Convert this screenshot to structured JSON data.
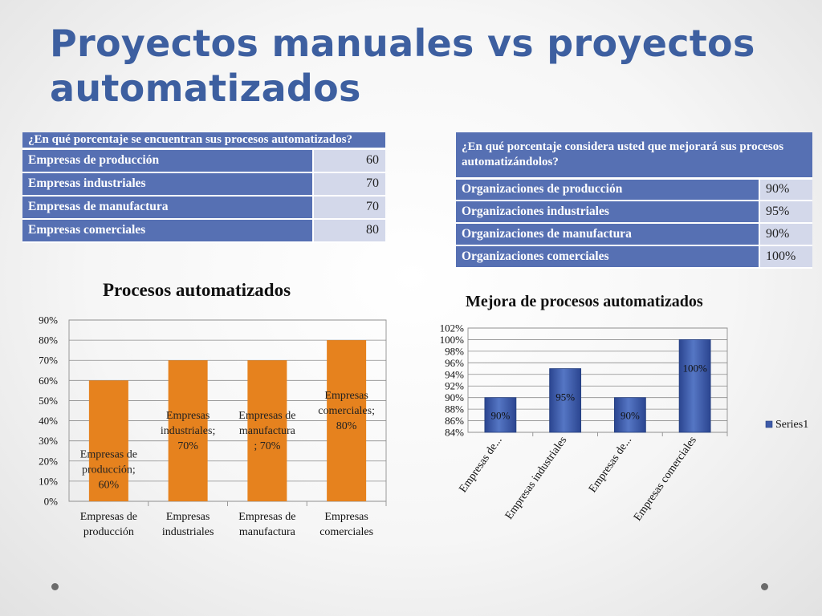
{
  "slide": {
    "title": "Proyectos manuales vs proyectos automatizados"
  },
  "table_left": {
    "header": "¿En qué porcentaje se encuentran sus procesos automatizados?",
    "rows": [
      {
        "label": "Empresas de producción",
        "value": "60"
      },
      {
        "label": "Empresas industriales",
        "value": "70"
      },
      {
        "label": "Empresas de manufactura",
        "value": "70"
      },
      {
        "label": "Empresas comerciales",
        "value": "80"
      }
    ]
  },
  "table_right": {
    "header": "¿En qué  porcentaje considera usted que mejorará sus procesos automatizándolos?",
    "rows": [
      {
        "label": "Organizaciones de producción",
        "value": "90%"
      },
      {
        "label": "Organizaciones industriales",
        "value": "95%"
      },
      {
        "label": "Organizaciones de manufactura",
        "value": "90%"
      },
      {
        "label": "Organizaciones comerciales",
        "value": "100%"
      }
    ]
  },
  "colors": {
    "table_header": "#5670b3",
    "table_value_bg": "#d3d8ea",
    "bar_orange": "#e6821e",
    "bar_blue": "#3d5aa8",
    "title": "#3d5fa0"
  },
  "chart_data": [
    {
      "type": "bar",
      "title": "Procesos automatizados",
      "categories": [
        "Empresas de producción",
        "Empresas industriales",
        "Empresas de manufactura",
        "Empresas comerciales"
      ],
      "category_lines": [
        [
          "Empresas de",
          "producción"
        ],
        [
          "Empresas",
          "industriales"
        ],
        [
          "Empresas de",
          "manufactura"
        ],
        [
          "Empresas",
          "comerciales"
        ]
      ],
      "values": [
        60,
        70,
        70,
        80
      ],
      "data_labels": [
        [
          "Empresas de",
          "producción;",
          "60%"
        ],
        [
          "Empresas",
          "industriales;",
          "70%"
        ],
        [
          "Empresas de",
          "manufactura",
          "; 70%"
        ],
        [
          "Empresas",
          "comerciales;",
          "80%"
        ]
      ],
      "yticks": [
        "0%",
        "10%",
        "20%",
        "30%",
        "40%",
        "50%",
        "60%",
        "70%",
        "80%",
        "90%"
      ],
      "ylim": [
        0,
        90
      ],
      "color": "#e6821e",
      "grid": true,
      "legend": "none"
    },
    {
      "type": "bar",
      "title": "Mejora de procesos automatizados",
      "categories": [
        "Empresas de...",
        "Empresas industriales",
        "Empresas de...",
        "Empresas comerciales"
      ],
      "values": [
        90,
        95,
        90,
        100
      ],
      "data_labels": [
        "90%",
        "95%",
        "90%",
        "100%"
      ],
      "yticks": [
        "84%",
        "86%",
        "88%",
        "90%",
        "92%",
        "94%",
        "96%",
        "98%",
        "100%",
        "102%"
      ],
      "ylim": [
        84,
        102
      ],
      "series": [
        {
          "name": "Series1",
          "values": [
            90,
            95,
            90,
            100
          ]
        }
      ],
      "color": "#3d5aa8",
      "grid": true,
      "legend": "right"
    }
  ]
}
